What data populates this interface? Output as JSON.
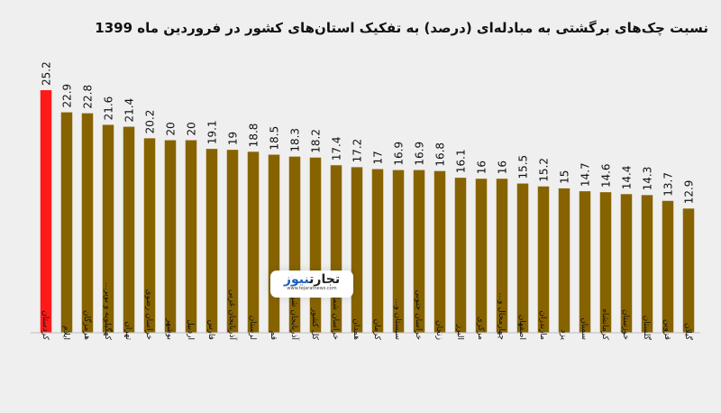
{
  "chart_data": {
    "type": "bar",
    "title": "نسبت چک‌های برگشتی به مبادله‌ای (درصد) به تفکیک استان‌های کشور در فروردین ماه 1399",
    "categories": [
      "کردستان",
      "ایلام",
      "هرمزگان",
      "کهگیلویه و بویر...",
      "تهران",
      "خراسان رضوی",
      "بوشهر",
      "اردبیل",
      "فارس",
      "آذربایجان غربی",
      "لرستان",
      "قم",
      "آذربایجان شرقی",
      "کل کشور",
      "خراسان شمالی",
      "همدان",
      "کرمان",
      "سیستان و...",
      "خراسان جنوبی",
      "زنجان",
      "البرز",
      "مرکزی",
      "چهارمحال و...",
      "اصفهان",
      "مازندران",
      "یزد",
      "سمنان",
      "کرمانشاه",
      "خوزستان",
      "گلستان",
      "قزوین",
      "گیلان"
    ],
    "values": [
      25.2,
      22.9,
      22.8,
      21.6,
      21.4,
      20.2,
      20,
      20,
      19.1,
      19,
      18.8,
      18.5,
      18.3,
      18.2,
      17.4,
      17.2,
      17,
      16.9,
      16.9,
      16.8,
      16.1,
      16,
      16,
      15.5,
      15.2,
      15,
      14.7,
      14.6,
      14.4,
      14.3,
      13.7,
      12.9
    ],
    "value_labels": [
      "25.2",
      "22.9",
      "22.8",
      "21.6",
      "21.4",
      "20.2",
      "20",
      "20",
      "19.1",
      "19",
      "18.8",
      "18.5",
      "18.3",
      "18.2",
      "17.4",
      "17.2",
      "17",
      "16.9",
      "16.9",
      "16.8",
      "16.1",
      "16",
      "16",
      "15.5",
      "15.2",
      "15",
      "14.7",
      "14.6",
      "14.4",
      "14.3",
      "13.7",
      "12.9"
    ],
    "colors": {
      "highlight": "#ff1a1a",
      "default": "#876300",
      "axis": "#bdbdbd"
    },
    "highlight_index": 0,
    "ylim": [
      0,
      25.2
    ],
    "grid": false,
    "legend": "none"
  },
  "watermark": {
    "logo_part1": "تجارت",
    "logo_part2": "نیوز",
    "url": "www.tejaratnews.com"
  }
}
